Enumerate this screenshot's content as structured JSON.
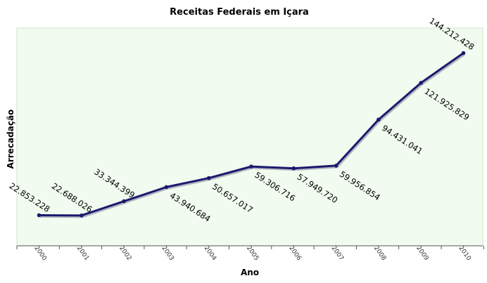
{
  "chart_data": {
    "type": "line",
    "title": "Receitas Federais em Içara",
    "xlabel": "Ano",
    "ylabel": "Arrecadação",
    "categories": [
      "2000",
      "2001",
      "2002",
      "2003",
      "2004",
      "2005",
      "2006",
      "2007",
      "2008",
      "2009",
      "2010"
    ],
    "values": [
      22853228,
      22688026,
      33344399,
      43940684,
      50657017,
      59306716,
      57949720,
      59956854,
      94431041,
      121925829,
      144212428
    ],
    "value_labels": [
      "22.853.228",
      "22.688.026",
      "33.344.399",
      "43.940.684",
      "50.657.017",
      "59.306.716",
      "57.949.720",
      "59.956.854",
      "94.431.041",
      "121.925.829",
      "144.212.428"
    ],
    "ylim": [
      0,
      160000000
    ],
    "grid": false,
    "legend": "none",
    "colors": {
      "plot_background": "#f1fbef",
      "plot_border": "#cfe3cc",
      "line": "#1a1a6e",
      "line_shadow": "#8a8aa0",
      "marker": "#1a1a6e"
    }
  }
}
